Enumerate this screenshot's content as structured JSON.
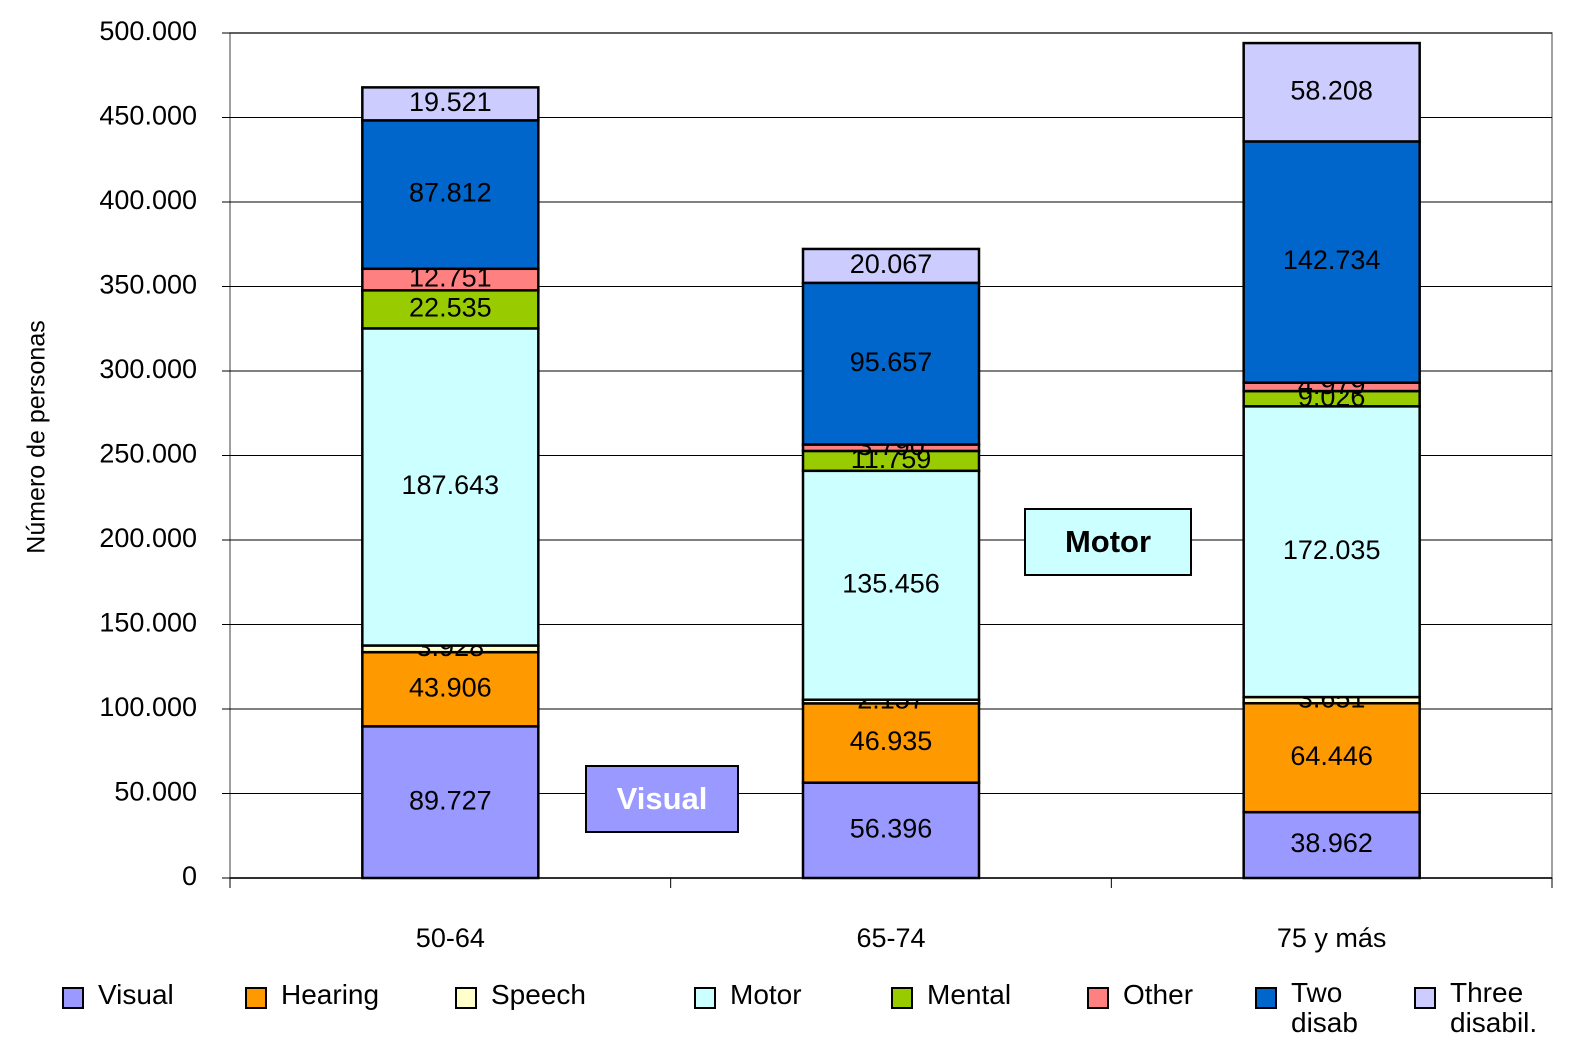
{
  "chart_data": {
    "type": "stacked_bar",
    "y_label": "Número de personas",
    "categories": [
      "50-64",
      "65-74",
      "75 y más"
    ],
    "series": [
      {
        "name": "Visual",
        "color": "#9999ff",
        "values": [
          89727,
          56396,
          38962
        ],
        "value_labels": [
          "89.727",
          "56.396",
          "38.962"
        ]
      },
      {
        "name": "Hearing",
        "color": "#ff9900",
        "values": [
          43906,
          46935,
          64446
        ],
        "value_labels": [
          "43.906",
          "46.935",
          "64.446"
        ]
      },
      {
        "name": "Speech",
        "color": "#ffffcc",
        "values": [
          3928,
          2157,
          3651
        ],
        "value_labels": [
          "3.928",
          "2.157",
          "3.651"
        ]
      },
      {
        "name": "Motor",
        "color": "#ccffff",
        "values": [
          187643,
          135456,
          172035
        ],
        "value_labels": [
          "187.643",
          "135.456",
          "172.035"
        ]
      },
      {
        "name": "Mental",
        "color": "#99cc00",
        "values": [
          22535,
          11759,
          9026
        ],
        "value_labels": [
          "22.535",
          "11.759",
          "9.026"
        ]
      },
      {
        "name": "Other",
        "color": "#ff8080",
        "values": [
          12751,
          3790,
          4979
        ],
        "value_labels": [
          "12.751",
          "3.790",
          "4.979"
        ]
      },
      {
        "name": "Two disab",
        "color": "#0066cc",
        "values": [
          87812,
          95657,
          142734
        ],
        "value_labels": [
          "87.812",
          "95.657",
          "142.734"
        ]
      },
      {
        "name": "Three disabil.",
        "color": "#ccccff",
        "values": [
          19521,
          20067,
          58208
        ],
        "value_labels": [
          "19.521",
          "20.067",
          "58.208"
        ]
      }
    ],
    "annotations": [
      {
        "text": "Visual",
        "color": "#9999ff"
      },
      {
        "text": "Motor",
        "color": "#ccffff"
      }
    ],
    "ylim": [
      0,
      500000
    ],
    "yticks": [
      0,
      {
        "value": 50000,
        "label": "50.000"
      },
      {
        "value": 100000,
        "label": "100.000"
      },
      {
        "value": 150000,
        "label": "150.000"
      },
      {
        "value": 200000,
        "label": "200.000"
      },
      {
        "value": 250000,
        "label": "250.000"
      },
      {
        "value": 300000,
        "label": "300.000"
      },
      {
        "value": 350000,
        "label": "350.000"
      },
      {
        "value": 400000,
        "label": "400.000"
      },
      {
        "value": 450000,
        "label": "450.000"
      },
      {
        "value": 500000,
        "label": "500.000"
      }
    ],
    "grid": true
  }
}
